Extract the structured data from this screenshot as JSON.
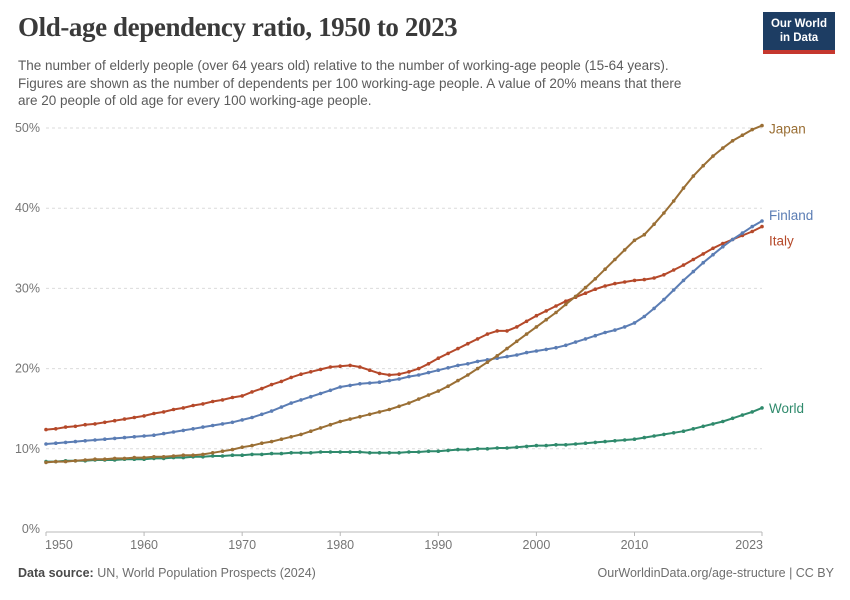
{
  "header": {
    "title": "Old-age dependency ratio, 1950 to 2023",
    "subtitle_lines": [
      "The number of elderly people (over 64 years old) relative to the number of working-age people (15-64 years).",
      "Figures are shown as the number of dependents per 100 working-age people. A value of 20% means that there",
      "are 20 people of old age for every 100 working-age people."
    ]
  },
  "logo": {
    "line1": "Our World",
    "line2": "in Data",
    "bg_color": "#1d3d63",
    "bar_color": "#c5372e"
  },
  "footer": {
    "source_label": "Data source:",
    "source_text": " UN, World Population Prospects (2024)",
    "credit": "OurWorldinData.org/age-structure | CC BY"
  },
  "chart_data": {
    "type": "line",
    "title": "Old-age dependency ratio, 1950 to 2023",
    "x_start": 1950,
    "x_end": 2023,
    "x_ticks": [
      "1950",
      "1960",
      "1970",
      "1980",
      "1990",
      "2000",
      "2010",
      "2023"
    ],
    "x_tick_years": [
      1950,
      1960,
      1970,
      1980,
      1990,
      2000,
      2010,
      2023
    ],
    "y_ticks": [
      0,
      10,
      20,
      30,
      40,
      50
    ],
    "y_tick_labels": [
      "0%",
      "10%",
      "20%",
      "30%",
      "40%",
      "50%"
    ],
    "ylim": [
      0,
      50
    ],
    "grid": "horizontal-dashed",
    "legend_position": "line-end-labels",
    "series": [
      {
        "name": "World",
        "color": "#2F8A6C",
        "values": [
          8.4,
          8.4,
          8.5,
          8.5,
          8.5,
          8.6,
          8.6,
          8.6,
          8.7,
          8.7,
          8.7,
          8.8,
          8.8,
          8.9,
          8.9,
          9.0,
          9.0,
          9.1,
          9.1,
          9.2,
          9.2,
          9.3,
          9.3,
          9.4,
          9.4,
          9.5,
          9.5,
          9.5,
          9.6,
          9.6,
          9.6,
          9.6,
          9.6,
          9.5,
          9.5,
          9.5,
          9.5,
          9.6,
          9.6,
          9.7,
          9.7,
          9.8,
          9.9,
          9.9,
          10.0,
          10.0,
          10.1,
          10.1,
          10.2,
          10.3,
          10.4,
          10.4,
          10.5,
          10.5,
          10.6,
          10.7,
          10.8,
          10.9,
          11.0,
          11.1,
          11.2,
          11.4,
          11.6,
          11.8,
          12.0,
          12.2,
          12.5,
          12.8,
          13.1,
          13.4,
          13.8,
          14.2,
          14.6,
          15.1
        ]
      },
      {
        "name": "Italy",
        "color": "#B5492A",
        "values": [
          12.4,
          12.5,
          12.7,
          12.8,
          13.0,
          13.1,
          13.3,
          13.5,
          13.7,
          13.9,
          14.1,
          14.4,
          14.6,
          14.9,
          15.1,
          15.4,
          15.6,
          15.9,
          16.1,
          16.4,
          16.6,
          17.1,
          17.5,
          18.0,
          18.4,
          18.9,
          19.3,
          19.6,
          19.9,
          20.2,
          20.3,
          20.4,
          20.2,
          19.8,
          19.4,
          19.2,
          19.3,
          19.6,
          20.0,
          20.6,
          21.3,
          21.9,
          22.5,
          23.1,
          23.7,
          24.3,
          24.7,
          24.7,
          25.2,
          25.9,
          26.6,
          27.2,
          27.8,
          28.4,
          28.9,
          29.4,
          29.9,
          30.3,
          30.6,
          30.8,
          31.0,
          31.1,
          31.3,
          31.7,
          32.3,
          32.9,
          33.6,
          34.3,
          35.0,
          35.6,
          36.1,
          36.6,
          37.1,
          37.7
        ]
      },
      {
        "name": "Finland",
        "color": "#5B7DB4",
        "values": [
          10.6,
          10.7,
          10.8,
          10.9,
          11.0,
          11.1,
          11.2,
          11.3,
          11.4,
          11.5,
          11.6,
          11.7,
          11.9,
          12.1,
          12.3,
          12.5,
          12.7,
          12.9,
          13.1,
          13.3,
          13.6,
          13.9,
          14.3,
          14.7,
          15.2,
          15.7,
          16.1,
          16.5,
          16.9,
          17.3,
          17.7,
          17.9,
          18.1,
          18.2,
          18.3,
          18.5,
          18.7,
          19.0,
          19.2,
          19.5,
          19.8,
          20.1,
          20.4,
          20.6,
          20.9,
          21.1,
          21.3,
          21.5,
          21.7,
          22.0,
          22.2,
          22.4,
          22.6,
          22.9,
          23.3,
          23.7,
          24.1,
          24.5,
          24.8,
          25.2,
          25.7,
          26.5,
          27.5,
          28.6,
          29.8,
          31.0,
          32.1,
          33.2,
          34.2,
          35.2,
          36.1,
          36.9,
          37.7,
          38.4
        ]
      },
      {
        "name": "Japan",
        "color": "#9A6F35",
        "values": [
          8.3,
          8.4,
          8.4,
          8.5,
          8.6,
          8.7,
          8.7,
          8.8,
          8.8,
          8.9,
          8.9,
          9.0,
          9.0,
          9.1,
          9.2,
          9.2,
          9.3,
          9.5,
          9.7,
          9.9,
          10.2,
          10.4,
          10.7,
          10.9,
          11.2,
          11.5,
          11.8,
          12.2,
          12.6,
          13.0,
          13.4,
          13.7,
          14.0,
          14.3,
          14.6,
          14.9,
          15.3,
          15.7,
          16.2,
          16.7,
          17.2,
          17.8,
          18.5,
          19.2,
          20.0,
          20.8,
          21.6,
          22.5,
          23.4,
          24.3,
          25.2,
          26.1,
          27.0,
          28.0,
          29.0,
          30.1,
          31.2,
          32.4,
          33.6,
          34.8,
          36.0,
          36.7,
          38.0,
          39.4,
          40.9,
          42.5,
          44.0,
          45.3,
          46.5,
          47.5,
          48.4,
          49.1,
          49.8,
          50.3
        ]
      }
    ],
    "colors": {
      "grid": "#dbdbdb",
      "axis": "#b8b8b8",
      "tick_text": "#757575"
    }
  }
}
